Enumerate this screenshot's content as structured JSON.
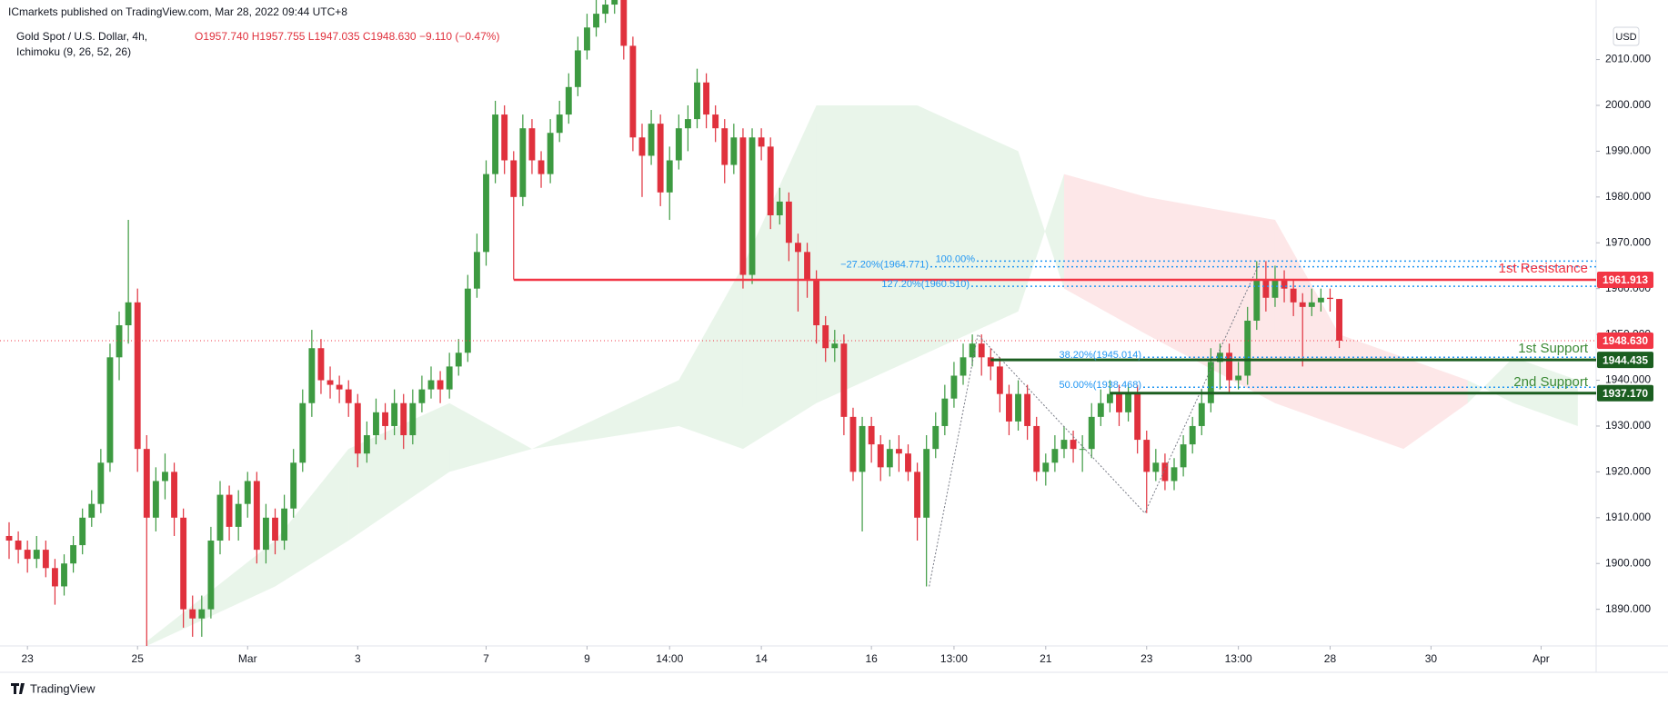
{
  "chart_data": {
    "type": "candlestick",
    "publisher": "ICmarkets published on TradingView.com, Mar 28, 2022 09:44 UTC+8",
    "title": "Gold Spot / U.S. Dollar, 4h,",
    "indicator": "Ichimoku (9, 26, 52, 26)",
    "header_ohlc": [
      "O1957.740",
      "H1957.755",
      "L1947.035",
      "C1948.630",
      "−9.110 (−0.47%)"
    ],
    "currency": "USD",
    "brand": "TradingView",
    "up_color": "#3d9a41",
    "down_color": "#e0313d",
    "grid": false,
    "ohlc": [
      [
        1906,
        1909,
        1901,
        1905
      ],
      [
        1905,
        1907,
        1900,
        1903
      ],
      [
        1903,
        1905,
        1898,
        1901
      ],
      [
        1901,
        1906,
        1899,
        1903
      ],
      [
        1903,
        1905,
        1897,
        1899
      ],
      [
        1899,
        1901,
        1891,
        1895
      ],
      [
        1895,
        1902,
        1893,
        1900
      ],
      [
        1900,
        1906,
        1898,
        1904
      ],
      [
        1904,
        1912,
        1902,
        1910
      ],
      [
        1910,
        1916,
        1908,
        1913
      ],
      [
        1913,
        1925,
        1911,
        1922
      ],
      [
        1922,
        1948,
        1920,
        1945
      ],
      [
        1945,
        1955,
        1940,
        1952
      ],
      [
        1952,
        1975,
        1948,
        1957
      ],
      [
        1957,
        1960,
        1920,
        1925
      ],
      [
        1925,
        1928,
        1882,
        1910
      ],
      [
        1910,
        1921,
        1907,
        1918
      ],
      [
        1918,
        1924,
        1914,
        1920
      ],
      [
        1920,
        1922,
        1906,
        1910
      ],
      [
        1910,
        1912,
        1886,
        1890
      ],
      [
        1890,
        1893,
        1884,
        1888
      ],
      [
        1888,
        1893,
        1884,
        1890
      ],
      [
        1890,
        1908,
        1888,
        1905
      ],
      [
        1905,
        1918,
        1902,
        1915
      ],
      [
        1915,
        1917,
        1905,
        1908
      ],
      [
        1908,
        1916,
        1905,
        1913
      ],
      [
        1913,
        1920,
        1910,
        1918
      ],
      [
        1918,
        1920,
        1900,
        1903
      ],
      [
        1903,
        1913,
        1900,
        1910
      ],
      [
        1910,
        1912,
        1902,
        1905
      ],
      [
        1905,
        1915,
        1903,
        1912
      ],
      [
        1912,
        1925,
        1910,
        1922
      ],
      [
        1922,
        1938,
        1920,
        1935
      ],
      [
        1935,
        1951,
        1932,
        1947
      ],
      [
        1947,
        1949,
        1937,
        1940
      ],
      [
        1940,
        1943,
        1936,
        1939
      ],
      [
        1939,
        1941,
        1935,
        1938
      ],
      [
        1938,
        1940,
        1932,
        1935
      ],
      [
        1935,
        1937,
        1921,
        1924
      ],
      [
        1924,
        1931,
        1922,
        1928
      ],
      [
        1928,
        1936,
        1926,
        1933
      ],
      [
        1933,
        1935,
        1927,
        1930
      ],
      [
        1930,
        1938,
        1928,
        1935
      ],
      [
        1935,
        1937,
        1925,
        1928
      ],
      [
        1928,
        1938,
        1926,
        1935
      ],
      [
        1935,
        1941,
        1933,
        1938
      ],
      [
        1938,
        1943,
        1936,
        1940
      ],
      [
        1940,
        1942,
        1935,
        1938
      ],
      [
        1938,
        1946,
        1936,
        1943
      ],
      [
        1943,
        1949,
        1941,
        1946
      ],
      [
        1946,
        1963,
        1944,
        1960
      ],
      [
        1960,
        1972,
        1958,
        1968
      ],
      [
        1968,
        1988,
        1965,
        1985
      ],
      [
        1985,
        2001,
        1983,
        1998
      ],
      [
        1998,
        2000,
        1985,
        1988
      ],
      [
        1988,
        1990,
        1962,
        1980
      ],
      [
        1980,
        1998,
        1978,
        1995
      ],
      [
        1995,
        1997,
        1985,
        1988
      ],
      [
        1988,
        1990,
        1982,
        1985
      ],
      [
        1985,
        1997,
        1983,
        1994
      ],
      [
        1994,
        2001,
        1992,
        1998
      ],
      [
        1998,
        2007,
        1996,
        2004
      ],
      [
        2004,
        2015,
        2002,
        2012
      ],
      [
        2012,
        2020,
        2010,
        2017
      ],
      [
        2017,
        2023,
        2015,
        2020
      ],
      [
        2020,
        2025,
        2018,
        2022
      ],
      [
        2022,
        2030,
        2020,
        2026
      ],
      [
        2026,
        2028,
        2010,
        2013
      ],
      [
        2013,
        2015,
        1990,
        1993
      ],
      [
        1993,
        1996,
        1980,
        1989
      ],
      [
        1989,
        1999,
        1987,
        1996
      ],
      [
        1996,
        1998,
        1978,
        1981
      ],
      [
        1981,
        1991,
        1975,
        1988
      ],
      [
        1988,
        1998,
        1986,
        1995
      ],
      [
        1995,
        2000,
        1990,
        1997
      ],
      [
        1997,
        2008,
        1995,
        2005
      ],
      [
        2005,
        2007,
        1995,
        1998
      ],
      [
        1998,
        2000,
        1992,
        1995
      ],
      [
        1995,
        1997,
        1983,
        1987
      ],
      [
        1987,
        1996,
        1985,
        1993
      ],
      [
        1993,
        1995,
        1960,
        1963
      ],
      [
        1963,
        1995,
        1961,
        1993
      ],
      [
        1993,
        1995,
        1988,
        1991
      ],
      [
        1991,
        1993,
        1973,
        1976
      ],
      [
        1976,
        1982,
        1974,
        1979
      ],
      [
        1979,
        1981,
        1966,
        1970
      ],
      [
        1970,
        1972,
        1955,
        1968
      ],
      [
        1968,
        1970,
        1958,
        1962
      ],
      [
        1962,
        1964,
        1948,
        1952
      ],
      [
        1952,
        1954,
        1944,
        1947
      ],
      [
        1947,
        1951,
        1944,
        1948
      ],
      [
        1948,
        1950,
        1928,
        1932
      ],
      [
        1932,
        1934,
        1918,
        1920
      ],
      [
        1920,
        1932,
        1907,
        1930
      ],
      [
        1930,
        1932,
        1922,
        1926
      ],
      [
        1926,
        1928,
        1918,
        1921
      ],
      [
        1921,
        1927,
        1919,
        1925
      ],
      [
        1925,
        1928,
        1920,
        1924
      ],
      [
        1924,
        1926,
        1918,
        1920
      ],
      [
        1920,
        1922,
        1905,
        1910
      ],
      [
        1910,
        1928,
        1895,
        1925
      ],
      [
        1925,
        1933,
        1923,
        1930
      ],
      [
        1930,
        1939,
        1928,
        1936
      ],
      [
        1936,
        1944,
        1934,
        1941
      ],
      [
        1941,
        1948,
        1939,
        1945
      ],
      [
        1945,
        1950,
        1943,
        1948
      ],
      [
        1948,
        1950,
        1941,
        1945
      ],
      [
        1945,
        1947,
        1940,
        1943
      ],
      [
        1943,
        1945,
        1933,
        1937
      ],
      [
        1937,
        1939,
        1928,
        1931
      ],
      [
        1931,
        1940,
        1929,
        1937
      ],
      [
        1937,
        1939,
        1927,
        1930
      ],
      [
        1930,
        1932,
        1918,
        1920
      ],
      [
        1920,
        1924,
        1917,
        1922
      ],
      [
        1922,
        1928,
        1920,
        1925
      ],
      [
        1925,
        1930,
        1923,
        1927
      ],
      [
        1927,
        1929,
        1922,
        1925
      ],
      [
        1925,
        1928,
        1920,
        1925
      ],
      [
        1925,
        1935,
        1923,
        1932
      ],
      [
        1932,
        1938,
        1930,
        1935
      ],
      [
        1935,
        1940,
        1933,
        1937
      ],
      [
        1937,
        1939,
        1930,
        1933
      ],
      [
        1933,
        1939,
        1931,
        1937
      ],
      [
        1937,
        1939,
        1924,
        1927
      ],
      [
        1927,
        1929,
        1911,
        1920
      ],
      [
        1920,
        1925,
        1918,
        1922
      ],
      [
        1922,
        1924,
        1916,
        1918
      ],
      [
        1918,
        1923,
        1916,
        1921
      ],
      [
        1921,
        1928,
        1919,
        1926
      ],
      [
        1926,
        1932,
        1924,
        1930
      ],
      [
        1930,
        1938,
        1928,
        1935
      ],
      [
        1935,
        1947,
        1933,
        1944
      ],
      [
        1944,
        1948,
        1938,
        1946
      ],
      [
        1946,
        1948,
        1937,
        1940
      ],
      [
        1940,
        1944,
        1938,
        1941
      ],
      [
        1941,
        1956,
        1939,
        1953
      ],
      [
        1953,
        1966,
        1951,
        1962
      ],
      [
        1962,
        1966,
        1955,
        1958
      ],
      [
        1958,
        1965,
        1956,
        1962
      ],
      [
        1962,
        1964,
        1957,
        1960
      ],
      [
        1960,
        1962,
        1954,
        1957
      ],
      [
        1957,
        1959,
        1943,
        1956
      ],
      [
        1956,
        1960,
        1954,
        1957
      ],
      [
        1957,
        1960,
        1955,
        1958
      ],
      [
        1958,
        1960,
        1955,
        1957.74
      ],
      [
        1957.74,
        1957.755,
        1947.035,
        1948.63
      ]
    ],
    "cloud": {
      "x": [
        15,
        29,
        37,
        48,
        57,
        73,
        80,
        88,
        99,
        110,
        115,
        124,
        138,
        145,
        152,
        159,
        164,
        171
      ],
      "span_a": [
        1883,
        1905,
        1925,
        1935,
        1925,
        1940,
        1965,
        2000,
        2000,
        1990,
        1960,
        1950,
        1935,
        1930,
        1925,
        1935,
        1945,
        1940
      ],
      "span_b": [
        1882,
        1895,
        1905,
        1920,
        1925,
        1930,
        1925,
        1935,
        1945,
        1955,
        1985,
        1980,
        1975,
        1950,
        1945,
        1940,
        1935,
        1930
      ]
    },
    "zigzag": {
      "x": [
        100.3,
        105.6,
        123.8,
        136.4
      ],
      "y": [
        1895,
        1950,
        1911,
        1966
      ]
    },
    "fib_levels": [
      {
        "label": "−27.20%(1964.771)",
        "value": 1964.771
      },
      {
        "label": "100.00%",
        "value": 1966
      },
      {
        "label": "127.20%(1960.510)",
        "value": 1960.51
      },
      {
        "label": "38.20%(1945.014)",
        "value": 1945.014
      },
      {
        "label": "50.00%(1938.468)",
        "value": 1938.468
      }
    ],
    "levels": [
      {
        "name": "1st Resistance",
        "value": 1961.913,
        "label": "1961.913",
        "color": "#f23645"
      },
      {
        "name": "1st Support",
        "value": 1944.435,
        "label": "1944.435",
        "color": "#1b5e20"
      },
      {
        "name": "2nd Support",
        "value": 1937.17,
        "label": "1937.170",
        "color": "#1b5e20"
      }
    ],
    "last_price": {
      "value": 1948.63,
      "label": "1948.630",
      "color": "#f23645"
    },
    "xlim": [
      0,
      173
    ],
    "ylim": [
      1882,
      2023
    ],
    "xticks": [
      {
        "value": 2,
        "label": "23"
      },
      {
        "value": 14,
        "label": "25"
      },
      {
        "value": 26,
        "label": "Mar"
      },
      {
        "value": 38,
        "label": "3"
      },
      {
        "value": 52,
        "label": "7"
      },
      {
        "value": 63,
        "label": "9"
      },
      {
        "value": 72,
        "label": "14:00"
      },
      {
        "value": 82,
        "label": "14"
      },
      {
        "value": 94,
        "label": "16"
      },
      {
        "value": 103,
        "label": "13:00"
      },
      {
        "value": 113,
        "label": "21"
      },
      {
        "value": 124,
        "label": "23"
      },
      {
        "value": 134,
        "label": "13:00"
      },
      {
        "value": 144,
        "label": "28"
      },
      {
        "value": 155,
        "label": "30"
      },
      {
        "value": 167,
        "label": "Apr"
      }
    ],
    "yticks": [
      {
        "value": 1890,
        "label": "1890.000"
      },
      {
        "value": 1900,
        "label": "1900.000"
      },
      {
        "value": 1910,
        "label": "1910.000"
      },
      {
        "value": 1920,
        "label": "1920.000"
      },
      {
        "value": 1930,
        "label": "1930.000"
      },
      {
        "value": 1940,
        "label": "1940.000"
      },
      {
        "value": 1950,
        "label": "1950.000"
      },
      {
        "value": 1960,
        "label": "1960.000"
      },
      {
        "value": 1970,
        "label": "1970.000"
      },
      {
        "value": 1980,
        "label": "1980.000"
      },
      {
        "value": 1990,
        "label": "1990.000"
      },
      {
        "value": 2000,
        "label": "2000.000"
      },
      {
        "value": 2010,
        "label": "2010.000"
      }
    ]
  }
}
